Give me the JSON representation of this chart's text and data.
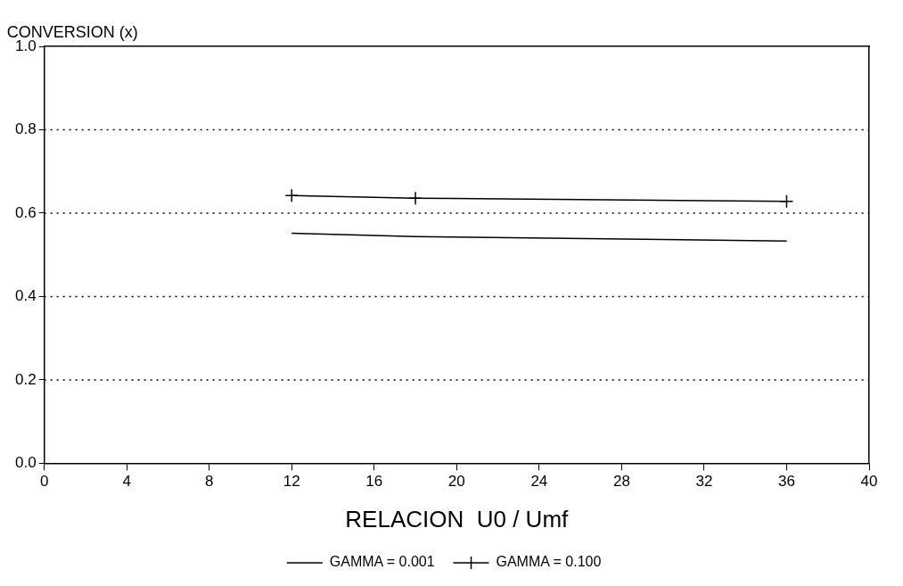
{
  "chart_data": {
    "type": "line",
    "xlabel": "RELACION  U0 / Umf",
    "ylabel": "CONVERSION (x)",
    "x": [
      12,
      18,
      36
    ],
    "series": [
      {
        "name": "GAMMA = 0.001",
        "color": "#000000",
        "values": [
          0.552,
          0.544,
          0.533
        ],
        "marker": "none"
      },
      {
        "name": "GAMMA = 0.100",
        "color": "#000000",
        "values": [
          0.642,
          0.636,
          0.628
        ],
        "marker": "cross"
      }
    ],
    "xlim": [
      0,
      40
    ],
    "xticks": [
      0,
      4,
      8,
      12,
      16,
      20,
      24,
      28,
      32,
      36,
      40
    ],
    "ylim": [
      0,
      1
    ],
    "yticks": [
      {
        "value": 0,
        "label": "0.0"
      },
      {
        "value": 0.2,
        "label": "0.2"
      },
      {
        "value": 0.4,
        "label": "0.4"
      },
      {
        "value": 0.6,
        "label": "0.6"
      },
      {
        "value": 0.8,
        "label": "0.8"
      },
      {
        "value": 1,
        "label": "1.0"
      }
    ],
    "grid": "y",
    "legend": "bottom",
    "line_style": "solid"
  }
}
